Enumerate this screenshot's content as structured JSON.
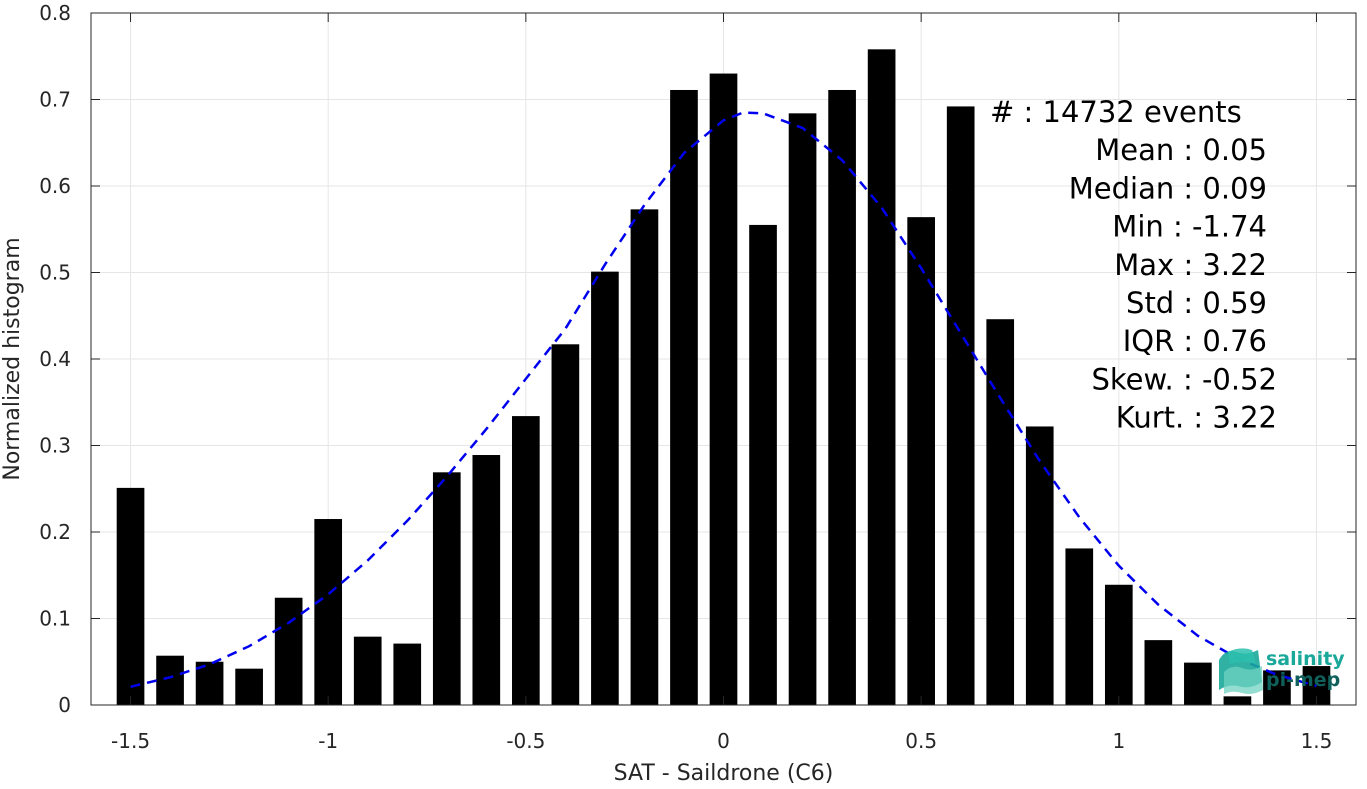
{
  "chart_data": {
    "type": "bar",
    "xlabel": "SAT - Saildrone (C6)",
    "ylabel": "Normalized histogram",
    "xlim": [
      -1.6,
      1.6
    ],
    "ylim": [
      0,
      0.8
    ],
    "xticks": [
      -1.5,
      -1,
      -0.5,
      0,
      0.5,
      1,
      1.5
    ],
    "xtick_labels": [
      "-1.5",
      "-1",
      "-0.5",
      "0",
      "0.5",
      "1",
      "1.5"
    ],
    "yticks": [
      0,
      0.1,
      0.2,
      0.3,
      0.4,
      0.5,
      0.6,
      0.7,
      0.8
    ],
    "ytick_labels": [
      "0",
      "0.1",
      "0.2",
      "0.3",
      "0.4",
      "0.5",
      "0.6",
      "0.7",
      "0.8"
    ],
    "grid": true,
    "bar_color": "#000000",
    "bin_width": 0.1,
    "bars": {
      "x": [
        -1.5,
        -1.4,
        -1.3,
        -1.2,
        -1.1,
        -1.0,
        -0.9,
        -0.8,
        -0.7,
        -0.6,
        -0.5,
        -0.4,
        -0.3,
        -0.2,
        -0.1,
        0.0,
        0.1,
        0.2,
        0.3,
        0.4,
        0.5,
        0.6,
        0.7,
        0.8,
        0.9,
        1.0,
        1.1,
        1.2,
        1.3,
        1.4,
        1.5
      ],
      "values": [
        0.251,
        0.057,
        0.05,
        0.042,
        0.124,
        0.215,
        0.079,
        0.071,
        0.269,
        0.289,
        0.334,
        0.417,
        0.501,
        0.573,
        0.711,
        0.73,
        0.555,
        0.684,
        0.711,
        0.758,
        0.564,
        0.692,
        0.446,
        0.322,
        0.181,
        0.139,
        0.075,
        0.049,
        0.01,
        0.04,
        0.045
      ]
    },
    "fit_curve": {
      "style": "dashed",
      "color": "#0000ee",
      "x": [
        -1.5,
        -1.4,
        -1.3,
        -1.2,
        -1.1,
        -1.0,
        -0.9,
        -0.8,
        -0.7,
        -0.6,
        -0.5,
        -0.4,
        -0.3,
        -0.2,
        -0.1,
        0.0,
        0.05,
        0.1,
        0.2,
        0.3,
        0.4,
        0.5,
        0.6,
        0.7,
        0.8,
        0.9,
        1.0,
        1.1,
        1.2,
        1.3,
        1.4,
        1.5
      ],
      "y": [
        0.021,
        0.032,
        0.047,
        0.068,
        0.095,
        0.128,
        0.167,
        0.213,
        0.264,
        0.319,
        0.377,
        0.435,
        0.509,
        0.578,
        0.638,
        0.676,
        0.685,
        0.684,
        0.667,
        0.63,
        0.575,
        0.505,
        0.43,
        0.355,
        0.282,
        0.217,
        0.161,
        0.116,
        0.08,
        0.054,
        0.035,
        0.022
      ]
    },
    "stats_box": {
      "position": "top-right",
      "lines": [
        "#  : 14732 events",
        "Mean : 0.05",
        "Median : 0.09",
        "Min : -1.74",
        "Max : 3.22",
        "Std : 0.59",
        "IQR : 0.76",
        "Skew. : -0.52",
        "Kurt. : 3.22"
      ]
    }
  },
  "logo": {
    "line1": "salinity",
    "line2": "pi-mep",
    "colors": [
      "#1aa89a",
      "#0f5f5a"
    ]
  }
}
